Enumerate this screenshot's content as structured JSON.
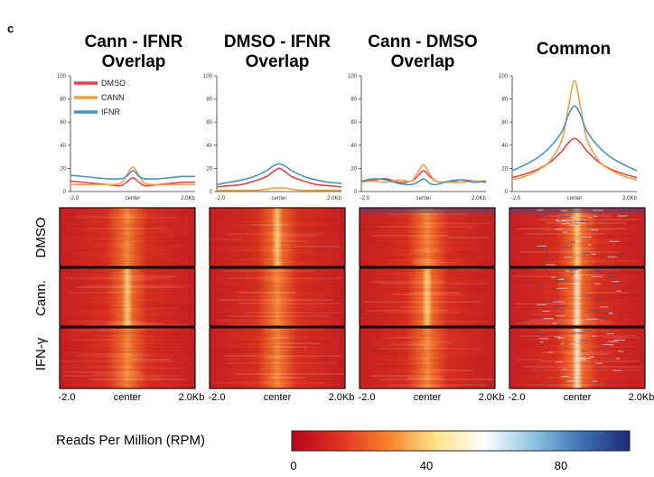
{
  "figure": {
    "panel_label": "c",
    "colors": {
      "DMSO": "#e0474c",
      "CANN": "#f0a045",
      "IFNR": "#4a95bd"
    }
  },
  "chart_data": [
    {
      "type": "line",
      "title": "Cann - IFNR Overlap",
      "x_ticks": [
        "-2.0",
        "center",
        "2.0Kb"
      ],
      "y_ticks": [
        "0",
        "20",
        "40",
        "60",
        "80",
        "100"
      ],
      "ylim": [
        0,
        100
      ],
      "legend": [
        "DMSO",
        "CANN",
        "IFNR"
      ],
      "legend_position": "top-left",
      "x": [
        -2.0,
        -1.6,
        -1.2,
        -0.8,
        -0.4,
        -0.2,
        0.0,
        0.2,
        0.4,
        0.8,
        1.2,
        1.6,
        2.0
      ],
      "series": [
        {
          "name": "DMSO",
          "values": [
            9,
            8,
            7,
            6,
            5,
            8,
            12,
            8,
            5,
            6,
            7,
            8,
            8
          ]
        },
        {
          "name": "CANN",
          "values": [
            6,
            6,
            6,
            6,
            7,
            14,
            21,
            14,
            7,
            6,
            6,
            6,
            6
          ]
        },
        {
          "name": "IFNR",
          "values": [
            14,
            13,
            12,
            11,
            11,
            13,
            18,
            13,
            11,
            11,
            12,
            13,
            13
          ]
        }
      ]
    },
    {
      "type": "line",
      "title": "DMSO - IFNR Overlap",
      "x_ticks": [
        "-2.0",
        "center",
        "2.0Kb"
      ],
      "y_ticks": [
        "0",
        "20",
        "40",
        "60",
        "80",
        "100"
      ],
      "ylim": [
        0,
        100
      ],
      "x": [
        -2.0,
        -1.6,
        -1.2,
        -0.8,
        -0.4,
        -0.2,
        0.0,
        0.2,
        0.4,
        0.8,
        1.2,
        1.6,
        2.0
      ],
      "series": [
        {
          "name": "DMSO",
          "values": [
            4,
            5,
            6,
            9,
            13,
            17,
            20,
            17,
            13,
            9,
            6,
            5,
            4
          ]
        },
        {
          "name": "CANN",
          "values": [
            1,
            1,
            1,
            1,
            2,
            3,
            3,
            3,
            2,
            1,
            1,
            1,
            1
          ]
        },
        {
          "name": "IFNR",
          "values": [
            6,
            8,
            10,
            13,
            18,
            22,
            24,
            22,
            18,
            13,
            10,
            8,
            7
          ]
        }
      ]
    },
    {
      "type": "line",
      "title": "Cann - DMSO Overlap",
      "x_ticks": [
        "-2.0",
        "center",
        "2.0Kb"
      ],
      "y_ticks": [
        "0",
        "20",
        "40",
        "60",
        "80",
        "100"
      ],
      "ylim": [
        0,
        100
      ],
      "x": [
        -2.0,
        -1.6,
        -1.2,
        -0.8,
        -0.4,
        -0.2,
        0.0,
        0.2,
        0.4,
        0.8,
        1.2,
        1.6,
        2.0
      ],
      "series": [
        {
          "name": "DMSO",
          "values": [
            8,
            10,
            11,
            8,
            9,
            13,
            18,
            13,
            9,
            8,
            10,
            9,
            8
          ]
        },
        {
          "name": "CANN",
          "values": [
            8,
            9,
            8,
            10,
            9,
            16,
            23,
            15,
            9,
            8,
            8,
            9,
            9
          ]
        },
        {
          "name": "IFNR",
          "values": [
            9,
            11,
            10,
            7,
            6,
            8,
            11,
            7,
            6,
            9,
            10,
            8,
            9
          ]
        }
      ]
    },
    {
      "type": "line",
      "title": "Common",
      "x_ticks": [
        "-2.0",
        "center",
        "2.0Kb"
      ],
      "y_ticks": [
        "0",
        "20",
        "40",
        "60",
        "80",
        "100"
      ],
      "ylim": [
        0,
        100
      ],
      "x": [
        -2.0,
        -1.6,
        -1.2,
        -0.8,
        -0.4,
        -0.2,
        0.0,
        0.2,
        0.4,
        0.8,
        1.2,
        1.6,
        2.0
      ],
      "series": [
        {
          "name": "DMSO",
          "values": [
            12,
            15,
            19,
            25,
            35,
            42,
            46,
            42,
            35,
            25,
            19,
            15,
            12
          ]
        },
        {
          "name": "CANN",
          "values": [
            10,
            13,
            18,
            26,
            45,
            72,
            96,
            72,
            45,
            26,
            18,
            13,
            10
          ]
        },
        {
          "name": "IFNR",
          "values": [
            18,
            23,
            29,
            38,
            52,
            66,
            74,
            66,
            52,
            38,
            29,
            23,
            18
          ]
        }
      ]
    },
    {
      "type": "heatmap",
      "title": "",
      "row_groups": [
        "DMSO",
        "Cann.",
        "IFN-γ"
      ],
      "x_ticks": [
        "-2.0",
        "center",
        "2.0Kb"
      ],
      "columns": [
        "Cann - IFNR Overlap",
        "DMSO - IFNR Overlap",
        "Cann - DMSO Overlap",
        "Common"
      ],
      "colorbar": {
        "label": "Reads Per Million (RPM)",
        "ticks": [
          "0",
          "40",
          "80"
        ],
        "range": [
          0,
          100
        ],
        "colors": [
          "#b2061b",
          "#e03222",
          "#f7832a",
          "#fce38a",
          "#ffffff",
          "#8ec5e2",
          "#3e72b4",
          "#1e2a78"
        ]
      }
    }
  ]
}
